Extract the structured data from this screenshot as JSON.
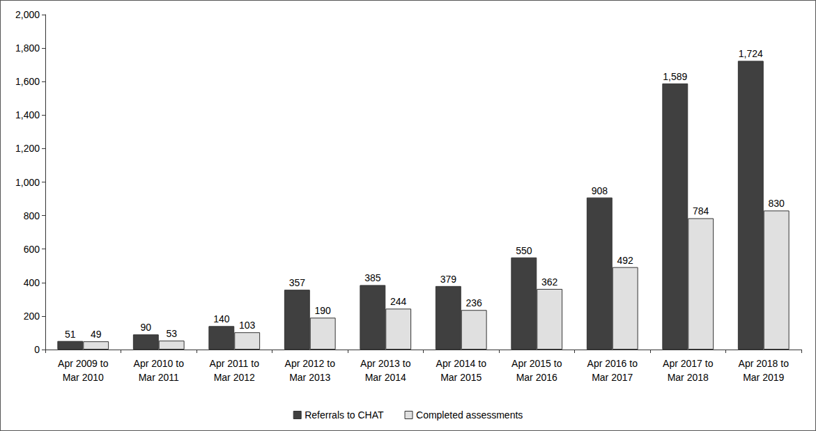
{
  "chart_data": {
    "type": "bar",
    "categories": [
      "Apr 2009 to\nMar 2010",
      "Apr 2010 to\nMar 2011",
      "Apr 2011 to\nMar 2012",
      "Apr 2012 to\nMar 2013",
      "Apr 2013 to\nMar 2014",
      "Apr 2014 to\nMar 2015",
      "Apr 2015 to\nMar 2016",
      "Apr 2016 to\nMar 2017",
      "Apr 2017 to\nMar 2018",
      "Apr 2018 to\nMar 2019"
    ],
    "series": [
      {
        "name": "Referrals to CHAT",
        "color": "#404040",
        "values": [
          51,
          90,
          140,
          357,
          385,
          379,
          550,
          908,
          1589,
          1724
        ],
        "value_labels": [
          "51",
          "90",
          "140",
          "357",
          "385",
          "379",
          "550",
          "908",
          "1,589",
          "1,724"
        ]
      },
      {
        "name": "Completed assessments",
        "color": "#e0e0e0",
        "values": [
          49,
          53,
          103,
          190,
          244,
          236,
          362,
          492,
          784,
          830
        ]
      }
    ],
    "ylim": [
      0,
      2000
    ],
    "yticks": [
      0,
      200,
      400,
      600,
      800,
      {
        "value": 1000,
        "label": "1,000"
      },
      {
        "value": 1200,
        "label": "1,200"
      },
      {
        "value": 1400,
        "label": "1,400"
      },
      {
        "value": 1600,
        "label": "1,600"
      },
      {
        "value": 1800,
        "label": "1,800"
      },
      {
        "value": 2000,
        "label": "2,000"
      }
    ],
    "grid": false,
    "legend": "bottom",
    "data_labels": true
  }
}
